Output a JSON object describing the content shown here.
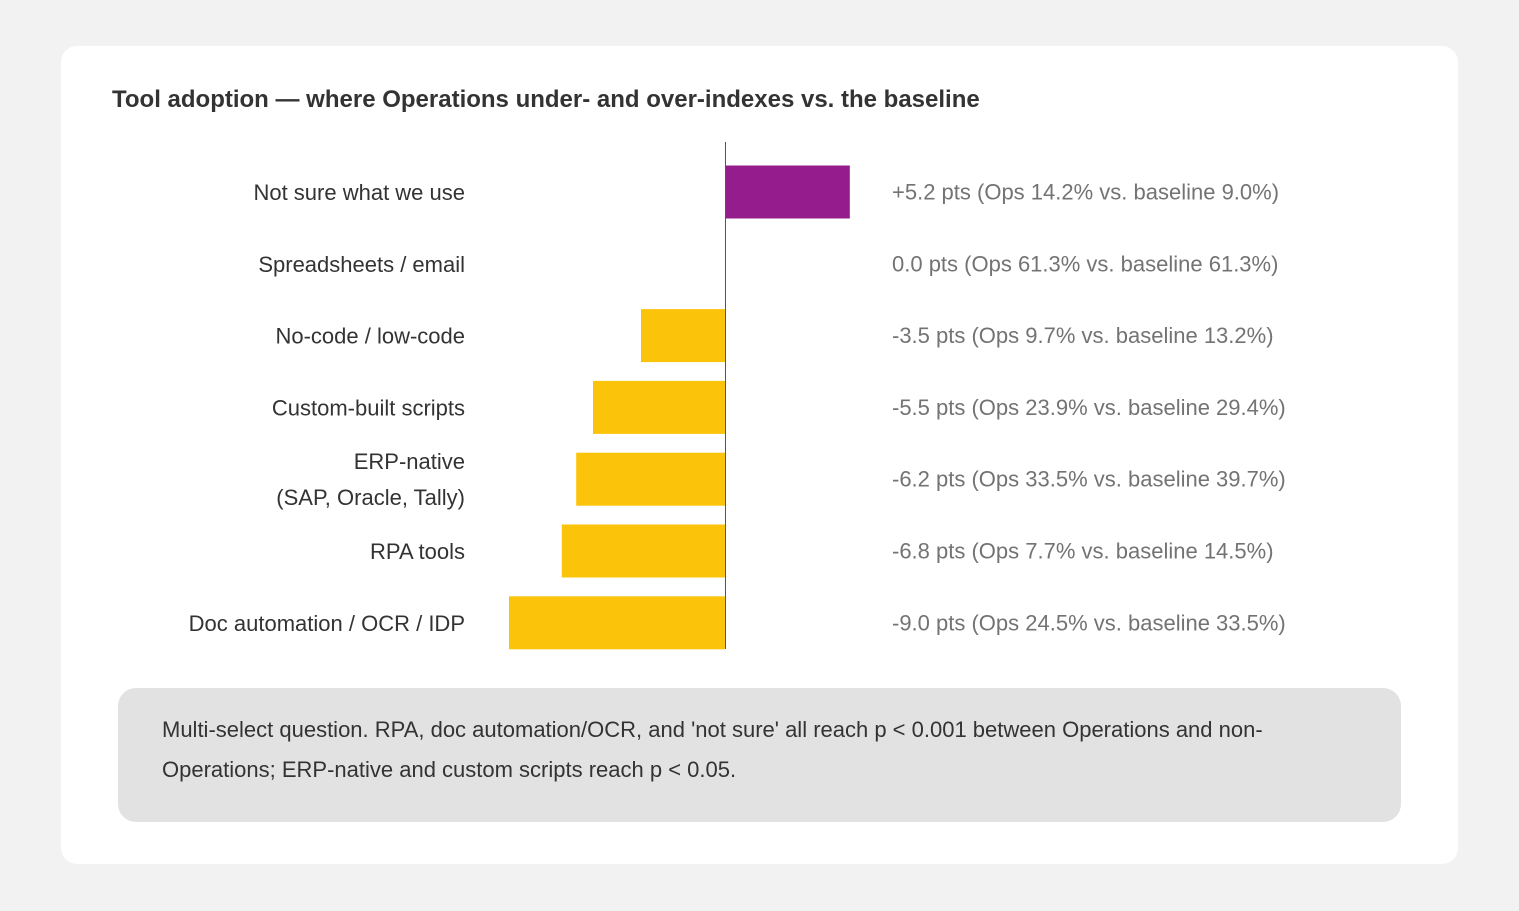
{
  "title": "Tool adoption — where Operations under- and over-indexes vs. the baseline",
  "note": "Multi-select question. RPA, doc automation/OCR, and 'not sure' all reach p < 0.001 between Operations and non-Operations; ERP-native and custom scripts reach p < 0.05.",
  "colors": {
    "positive": "#941c8c",
    "negative": "#fcc30b",
    "axis": "#555555",
    "category_text": "#333333",
    "value_text": "#737373"
  },
  "chart_data": {
    "type": "bar",
    "orientation": "horizontal",
    "categories": [
      [
        "Not sure what we use"
      ],
      [
        "Spreadsheets / email"
      ],
      [
        "No-code / low-code"
      ],
      [
        "Custom-built scripts"
      ],
      [
        "ERP-native",
        "(SAP, Oracle, Tally)"
      ],
      [
        "RPA tools"
      ],
      [
        "Doc automation / OCR / IDP"
      ]
    ],
    "values": [
      5.2,
      0.0,
      -3.5,
      -5.5,
      -6.2,
      -6.8,
      -9.0
    ],
    "value_labels": [
      "+5.2 pts (Ops 14.2% vs. baseline 9.0%)",
      "0.0 pts (Ops 61.3% vs. baseline 61.3%)",
      "-3.5 pts (Ops 9.7% vs. baseline 13.2%)",
      "-5.5 pts (Ops 23.9% vs. baseline 29.4%)",
      "-6.2 pts (Ops 33.5% vs. baseline 39.7%)",
      "-6.8 pts (Ops 7.7% vs. baseline 14.5%)",
      "-9.0 pts (Ops 24.5% vs. baseline 33.5%)"
    ],
    "xlim": [
      -9.0,
      5.2
    ],
    "grid": false,
    "legend": "none"
  }
}
